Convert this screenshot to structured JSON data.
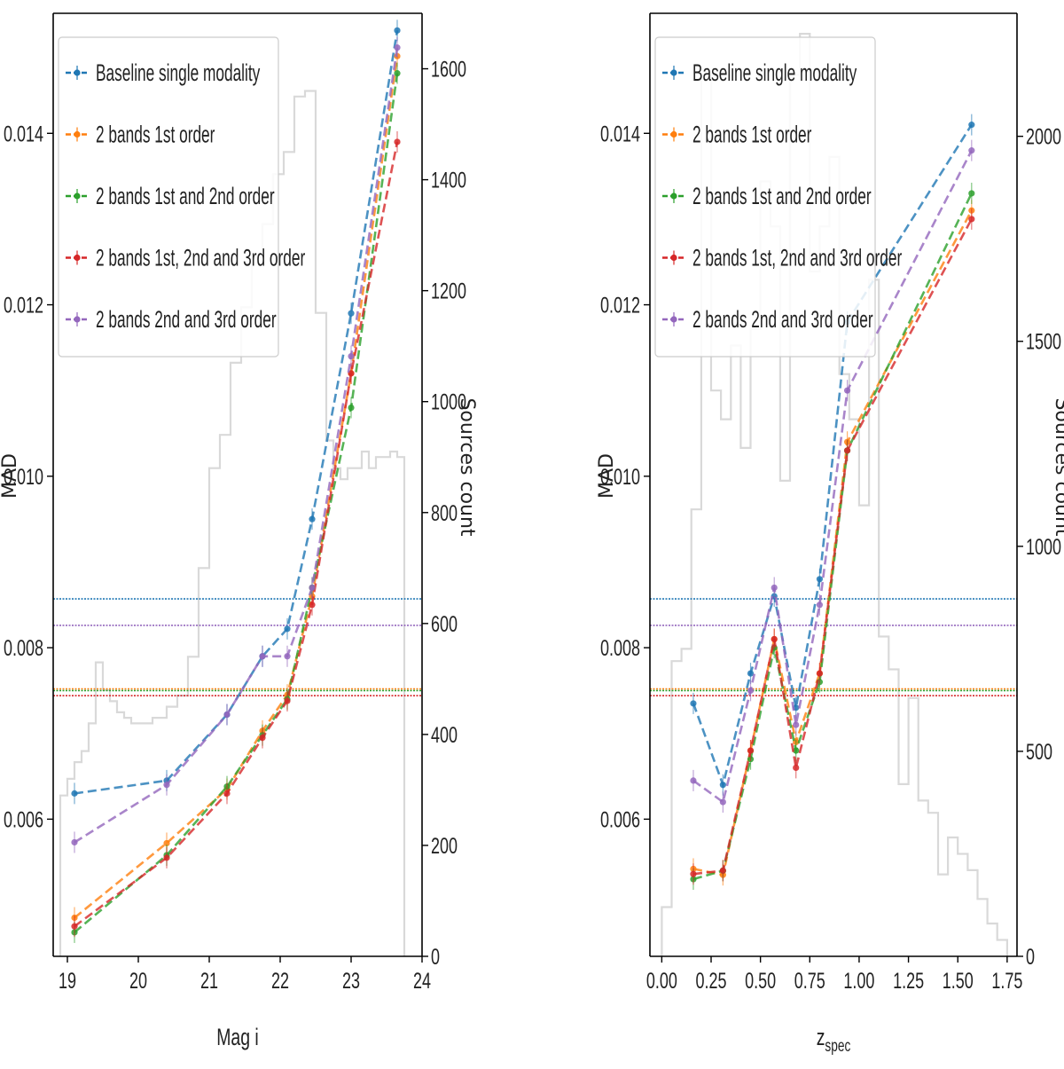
{
  "colors": {
    "baseline": "#1f77b4",
    "o1": "#ff7f0e",
    "o12": "#2ca02c",
    "o123": "#d62728",
    "o23": "#9467bd",
    "hist": "#d9d9d9"
  },
  "chart_data": [
    {
      "type": "line",
      "xlabel": "Mag i",
      "ylabel": "MAD",
      "y2label": "Sources count",
      "xlim": [
        18.8,
        24.0
      ],
      "ylim": [
        0.0044,
        0.0154
      ],
      "y2lim": [
        0,
        1700
      ],
      "xticks": [
        19,
        20,
        21,
        22,
        23,
        24
      ],
      "yticks": [
        0.006,
        0.008,
        0.01,
        0.012,
        0.014
      ],
      "ytick_labels": [
        "0.006",
        "0.008",
        "0.010",
        "0.012",
        "0.014"
      ],
      "y2ticks": [
        0,
        200,
        400,
        600,
        800,
        1000,
        1200,
        1400,
        1600
      ],
      "legend": "upper-left",
      "x": [
        19.1,
        20.4,
        21.25,
        21.75,
        22.1,
        22.45,
        23.0,
        23.65
      ],
      "series": [
        {
          "name": "Baseline single modality",
          "color_key": "baseline",
          "hline": 0.00857,
          "values": [
            0.0063,
            0.00645,
            0.00722,
            0.0079,
            0.00822,
            0.0095,
            0.0119,
            0.0152
          ]
        },
        {
          "name": "2 bands 1st order",
          "color_key": "o1",
          "hline": 0.00752,
          "values": [
            0.00485,
            0.00572,
            0.00635,
            0.00703,
            0.00745,
            0.0086,
            0.0112,
            0.0149
          ]
        },
        {
          "name": "2 bands 1st and 2nd order",
          "color_key": "o12",
          "hline": 0.0075,
          "values": [
            0.00468,
            0.00558,
            0.00638,
            0.00698,
            0.0074,
            0.0087,
            0.0108,
            0.0147
          ]
        },
        {
          "name": "2 bands 1st, 2nd and 3rd order",
          "color_key": "o123",
          "hline": 0.00744,
          "values": [
            0.00475,
            0.00555,
            0.0063,
            0.00695,
            0.00738,
            0.0085,
            0.0112,
            0.0139
          ]
        },
        {
          "name": "2 bands 2nd and 3rd order",
          "color_key": "o23",
          "hline": 0.00826,
          "values": [
            0.00573,
            0.0064,
            0.00722,
            0.0079,
            0.0079,
            0.0087,
            0.0114,
            0.015
          ]
        }
      ],
      "histogram": {
        "edges": [
          18.9,
          19.0,
          19.1,
          19.2,
          19.3,
          19.4,
          19.5,
          19.6,
          19.7,
          19.8,
          19.9,
          20.0,
          20.2,
          20.4,
          20.55,
          20.7,
          20.85,
          21.0,
          21.15,
          21.3,
          21.45,
          21.6,
          21.75,
          21.9,
          22.05,
          22.2,
          22.35,
          22.5,
          22.65,
          22.75,
          22.85,
          22.95,
          23.05,
          23.15,
          23.25,
          23.35,
          23.45,
          23.55,
          23.65,
          23.75
        ],
        "counts": [
          290,
          320,
          350,
          370,
          420,
          530,
          480,
          460,
          440,
          430,
          420,
          420,
          430,
          450,
          470,
          540,
          700,
          880,
          940,
          1070,
          1170,
          1260,
          1320,
          1410,
          1450,
          1550,
          1560,
          1160,
          930,
          880,
          860,
          880,
          880,
          910,
          880,
          900,
          900,
          910,
          900
        ]
      }
    },
    {
      "type": "line",
      "xlabel": "z_spec",
      "xlabel_main": "z",
      "xlabel_sub": "spec",
      "ylabel": "MAD",
      "y2label": "Sources count",
      "xlim": [
        -0.06,
        1.8
      ],
      "ylim": [
        0.0044,
        0.0154
      ],
      "y2lim": [
        0,
        2300
      ],
      "xticks": [
        0.0,
        0.25,
        0.5,
        0.75,
        1.0,
        1.25,
        1.5,
        1.75
      ],
      "xtick_labels": [
        "0.00",
        "0.25",
        "0.50",
        "0.75",
        "1.00",
        "1.25",
        "1.50",
        "1.75"
      ],
      "yticks": [
        0.006,
        0.008,
        0.01,
        0.012,
        0.014
      ],
      "ytick_labels": [
        "0.006",
        "0.008",
        "0.010",
        "0.012",
        "0.014"
      ],
      "y2ticks": [
        0,
        500,
        1000,
        1500,
        2000
      ],
      "legend": "upper-left",
      "x": [
        0.16,
        0.31,
        0.45,
        0.57,
        0.68,
        0.8,
        0.94,
        1.57
      ],
      "series": [
        {
          "name": "Baseline single modality",
          "color_key": "baseline",
          "hline": 0.00857,
          "values": [
            0.00735,
            0.0064,
            0.0077,
            0.0086,
            0.0073,
            0.0088,
            0.0118,
            0.0141
          ]
        },
        {
          "name": "2 bands 1st order",
          "color_key": "o1",
          "hline": 0.00752,
          "values": [
            0.00542,
            0.00535,
            0.0068,
            0.0081,
            0.0069,
            0.0077,
            0.0104,
            0.0131
          ]
        },
        {
          "name": "2 bands 1st and 2nd order",
          "color_key": "o12",
          "hline": 0.0075,
          "values": [
            0.0053,
            0.0054,
            0.0067,
            0.008,
            0.0068,
            0.0076,
            0.0103,
            0.0133
          ]
        },
        {
          "name": "2 bands 1st, 2nd and 3rd order",
          "color_key": "o123",
          "hline": 0.00744,
          "values": [
            0.00536,
            0.0054,
            0.0068,
            0.0081,
            0.0066,
            0.0077,
            0.0103,
            0.013
          ]
        },
        {
          "name": "2 bands 2nd and 3rd order",
          "color_key": "o23",
          "hline": 0.00826,
          "values": [
            0.00645,
            0.0062,
            0.0075,
            0.0087,
            0.0071,
            0.0085,
            0.011,
            0.0138
          ]
        }
      ],
      "histogram": {
        "edges": [
          0.0,
          0.05,
          0.1,
          0.15,
          0.2,
          0.25,
          0.3,
          0.35,
          0.4,
          0.45,
          0.5,
          0.55,
          0.6,
          0.65,
          0.7,
          0.75,
          0.8,
          0.85,
          0.9,
          0.95,
          1.0,
          1.05,
          1.1,
          1.15,
          1.2,
          1.25,
          1.3,
          1.35,
          1.4,
          1.45,
          1.5,
          1.55,
          1.6,
          1.65,
          1.7,
          1.75
        ],
        "counts": [
          120,
          720,
          750,
          1090,
          2150,
          1380,
          1310,
          1490,
          1240,
          1530,
          1890,
          1780,
          1160,
          2150,
          2250,
          1670,
          1780,
          1950,
          1420,
          1310,
          1100,
          1650,
          780,
          700,
          420,
          630,
          380,
          350,
          200,
          290,
          250,
          210,
          140,
          80,
          40
        ]
      }
    }
  ]
}
